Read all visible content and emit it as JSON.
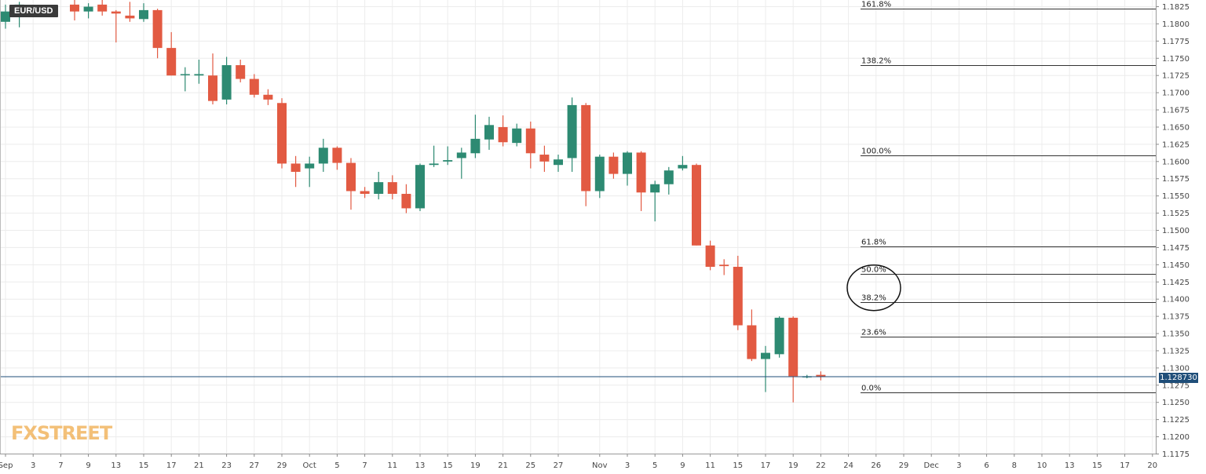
{
  "header": {
    "symbol": "EUR/USD"
  },
  "last_price": {
    "label": "1.128730",
    "value": 1.12873,
    "color": "#1f4e79"
  },
  "watermark": "FXSTREET",
  "colors": {
    "up": "#2d8a72",
    "down": "#e25a42",
    "grid": "#ececec",
    "fib_line": "#333333"
  },
  "chart_data": {
    "type": "candlestick",
    "title": "",
    "symbol": "EUR/USD",
    "grid": true,
    "y_axis": {
      "position": "right",
      "range": [
        1.1175,
        1.1825
      ],
      "ticks": [
        "1.1825",
        "1.1800",
        "1.1775",
        "1.1750",
        "1.1725",
        "1.1700",
        "1.1675",
        "1.1650",
        "1.1625",
        "1.1600",
        "1.1575",
        "1.1550",
        "1.1525",
        "1.1500",
        "1.1475",
        "1.1450",
        "1.1425",
        "1.1400",
        "1.1375",
        "1.1350",
        "1.1325",
        "1.1300",
        "1.1275",
        "1.1250",
        "1.1225",
        "1.1200",
        "1.1175"
      ]
    },
    "x_axis": {
      "ticks": [
        {
          "label": "Sep",
          "slot": 0
        },
        {
          "label": "3",
          "slot": 2
        },
        {
          "label": "7",
          "slot": 4
        },
        {
          "label": "9",
          "slot": 6
        },
        {
          "label": "13",
          "slot": 8
        },
        {
          "label": "15",
          "slot": 10
        },
        {
          "label": "17",
          "slot": 12
        },
        {
          "label": "21",
          "slot": 14
        },
        {
          "label": "23",
          "slot": 16
        },
        {
          "label": "27",
          "slot": 18
        },
        {
          "label": "29",
          "slot": 20
        },
        {
          "label": "Oct",
          "slot": 22
        },
        {
          "label": "5",
          "slot": 24
        },
        {
          "label": "7",
          "slot": 26
        },
        {
          "label": "11",
          "slot": 28
        },
        {
          "label": "13",
          "slot": 30
        },
        {
          "label": "15",
          "slot": 32
        },
        {
          "label": "19",
          "slot": 34
        },
        {
          "label": "21",
          "slot": 36
        },
        {
          "label": "25",
          "slot": 38
        },
        {
          "label": "27",
          "slot": 40
        },
        {
          "label": "Nov",
          "slot": 43
        },
        {
          "label": "3",
          "slot": 45
        },
        {
          "label": "5",
          "slot": 47
        },
        {
          "label": "9",
          "slot": 49
        },
        {
          "label": "11",
          "slot": 51
        },
        {
          "label": "15",
          "slot": 53
        },
        {
          "label": "17",
          "slot": 55
        },
        {
          "label": "19",
          "slot": 57
        },
        {
          "label": "22",
          "slot": 59
        },
        {
          "label": "24",
          "slot": 61
        },
        {
          "label": "26",
          "slot": 63
        },
        {
          "label": "29",
          "slot": 65
        },
        {
          "label": "Dec",
          "slot": 67
        },
        {
          "label": "3",
          "slot": 69
        },
        {
          "label": "6",
          "slot": 71
        },
        {
          "label": "8",
          "slot": 73
        },
        {
          "label": "10",
          "slot": 75
        },
        {
          "label": "13",
          "slot": 77
        },
        {
          "label": "15",
          "slot": 79
        },
        {
          "label": "17",
          "slot": 81
        },
        {
          "label": "20",
          "slot": 83
        }
      ]
    },
    "candles": [
      {
        "slot": 0.0,
        "o": 1.1803,
        "h": 1.1828,
        "l": 1.1793,
        "c": 1.1818
      },
      {
        "slot": 1.0,
        "o": 1.181,
        "h": 1.1832,
        "l": 1.1795,
        "c": 1.1828
      },
      {
        "slot": 5.0,
        "o": 1.1828,
        "h": 1.1838,
        "l": 1.1805,
        "c": 1.1818
      },
      {
        "slot": 6.0,
        "o": 1.1818,
        "h": 1.183,
        "l": 1.1808,
        "c": 1.1825
      },
      {
        "slot": 7.0,
        "o": 1.1828,
        "h": 1.1835,
        "l": 1.1812,
        "c": 1.1818
      },
      {
        "slot": 8.0,
        "o": 1.1818,
        "h": 1.182,
        "l": 1.1773,
        "c": 1.1815
      },
      {
        "slot": 9.0,
        "o": 1.1812,
        "h": 1.1832,
        "l": 1.1803,
        "c": 1.1808
      },
      {
        "slot": 10.0,
        "o": 1.1807,
        "h": 1.183,
        "l": 1.1803,
        "c": 1.182
      },
      {
        "slot": 11.0,
        "o": 1.182,
        "h": 1.1822,
        "l": 1.175,
        "c": 1.1765
      },
      {
        "slot": 12.0,
        "o": 1.1765,
        "h": 1.1788,
        "l": 1.1725,
        "c": 1.1725
      },
      {
        "slot": 13.0,
        "o": 1.1727,
        "h": 1.1737,
        "l": 1.1702,
        "c": 1.1727
      },
      {
        "slot": 14.0,
        "o": 1.1725,
        "h": 1.1748,
        "l": 1.1713,
        "c": 1.1727
      },
      {
        "slot": 15.0,
        "o": 1.1725,
        "h": 1.1757,
        "l": 1.1683,
        "c": 1.1688
      },
      {
        "slot": 16.0,
        "o": 1.169,
        "h": 1.1752,
        "l": 1.1683,
        "c": 1.174
      },
      {
        "slot": 17.0,
        "o": 1.174,
        "h": 1.1748,
        "l": 1.1715,
        "c": 1.172
      },
      {
        "slot": 18.0,
        "o": 1.172,
        "h": 1.1727,
        "l": 1.1693,
        "c": 1.1697
      },
      {
        "slot": 19.0,
        "o": 1.1697,
        "h": 1.1705,
        "l": 1.1682,
        "c": 1.169
      },
      {
        "slot": 20.0,
        "o": 1.1685,
        "h": 1.1692,
        "l": 1.159,
        "c": 1.1597
      },
      {
        "slot": 21.0,
        "o": 1.1597,
        "h": 1.1608,
        "l": 1.1563,
        "c": 1.1585
      },
      {
        "slot": 22.0,
        "o": 1.159,
        "h": 1.1607,
        "l": 1.1563,
        "c": 1.1597
      },
      {
        "slot": 23.0,
        "o": 1.1597,
        "h": 1.1633,
        "l": 1.1585,
        "c": 1.162
      },
      {
        "slot": 24.0,
        "o": 1.162,
        "h": 1.1622,
        "l": 1.1588,
        "c": 1.1598
      },
      {
        "slot": 25.0,
        "o": 1.1598,
        "h": 1.1605,
        "l": 1.153,
        "c": 1.1557
      },
      {
        "slot": 26.0,
        "o": 1.1557,
        "h": 1.1563,
        "l": 1.1547,
        "c": 1.1553
      },
      {
        "slot": 27.0,
        "o": 1.1553,
        "h": 1.1585,
        "l": 1.1545,
        "c": 1.157
      },
      {
        "slot": 28.0,
        "o": 1.157,
        "h": 1.158,
        "l": 1.1545,
        "c": 1.1553
      },
      {
        "slot": 29.0,
        "o": 1.1553,
        "h": 1.1567,
        "l": 1.1525,
        "c": 1.1532
      },
      {
        "slot": 30.0,
        "o": 1.1532,
        "h": 1.1597,
        "l": 1.1528,
        "c": 1.1595
      },
      {
        "slot": 31.0,
        "o": 1.1595,
        "h": 1.1623,
        "l": 1.1592,
        "c": 1.1597
      },
      {
        "slot": 32.0,
        "o": 1.16,
        "h": 1.1622,
        "l": 1.1595,
        "c": 1.1602
      },
      {
        "slot": 33.0,
        "o": 1.1605,
        "h": 1.162,
        "l": 1.1575,
        "c": 1.1613
      },
      {
        "slot": 34.0,
        "o": 1.1612,
        "h": 1.1668,
        "l": 1.1605,
        "c": 1.1633
      },
      {
        "slot": 35.0,
        "o": 1.1632,
        "h": 1.1665,
        "l": 1.1617,
        "c": 1.1653
      },
      {
        "slot": 36.0,
        "o": 1.165,
        "h": 1.1667,
        "l": 1.1622,
        "c": 1.1628
      },
      {
        "slot": 37.0,
        "o": 1.1627,
        "h": 1.1655,
        "l": 1.1622,
        "c": 1.1648
      },
      {
        "slot": 38.0,
        "o": 1.1648,
        "h": 1.1658,
        "l": 1.159,
        "c": 1.1612
      },
      {
        "slot": 39.0,
        "o": 1.161,
        "h": 1.1623,
        "l": 1.1585,
        "c": 1.16
      },
      {
        "slot": 40.0,
        "o": 1.1595,
        "h": 1.161,
        "l": 1.1585,
        "c": 1.1603
      },
      {
        "slot": 41.0,
        "o": 1.1605,
        "h": 1.1693,
        "l": 1.1585,
        "c": 1.1682
      },
      {
        "slot": 42.0,
        "o": 1.1682,
        "h": 1.1685,
        "l": 1.1535,
        "c": 1.1557
      },
      {
        "slot": 43.0,
        "o": 1.1557,
        "h": 1.161,
        "l": 1.1547,
        "c": 1.1607
      },
      {
        "slot": 44.0,
        "o": 1.1607,
        "h": 1.1613,
        "l": 1.1575,
        "c": 1.1582
      },
      {
        "slot": 45.0,
        "o": 1.1582,
        "h": 1.1615,
        "l": 1.1565,
        "c": 1.1613
      },
      {
        "slot": 46.0,
        "o": 1.1613,
        "h": 1.1615,
        "l": 1.1528,
        "c": 1.1555
      },
      {
        "slot": 47.0,
        "o": 1.1555,
        "h": 1.1572,
        "l": 1.1513,
        "c": 1.1567
      },
      {
        "slot": 48.0,
        "o": 1.1567,
        "h": 1.1592,
        "l": 1.1552,
        "c": 1.1587
      },
      {
        "slot": 49.0,
        "o": 1.159,
        "h": 1.1608,
        "l": 1.1587,
        "c": 1.1595
      },
      {
        "slot": 50.0,
        "o": 1.1595,
        "h": 1.1597,
        "l": 1.1478,
        "c": 1.1478
      },
      {
        "slot": 51.0,
        "o": 1.1478,
        "h": 1.1485,
        "l": 1.1442,
        "c": 1.1447
      },
      {
        "slot": 52.0,
        "o": 1.145,
        "h": 1.1458,
        "l": 1.1435,
        "c": 1.1448
      },
      {
        "slot": 53.0,
        "o": 1.1447,
        "h": 1.1463,
        "l": 1.1355,
        "c": 1.1362
      },
      {
        "slot": 54.0,
        "o": 1.1362,
        "h": 1.1385,
        "l": 1.131,
        "c": 1.1313
      },
      {
        "slot": 55.0,
        "o": 1.1313,
        "h": 1.1332,
        "l": 1.1265,
        "c": 1.1322
      },
      {
        "slot": 56.0,
        "o": 1.132,
        "h": 1.1375,
        "l": 1.1315,
        "c": 1.1373
      },
      {
        "slot": 57.0,
        "o": 1.1373,
        "h": 1.1375,
        "l": 1.125,
        "c": 1.1288
      },
      {
        "slot": 58.0,
        "o": 1.1287,
        "h": 1.129,
        "l": 1.1285,
        "c": 1.1288
      },
      {
        "slot": 59.0,
        "o": 1.129,
        "h": 1.1295,
        "l": 1.1282,
        "c": 1.1287
      }
    ],
    "fib_levels": [
      {
        "label": "161.8%",
        "price": 1.1822
      },
      {
        "label": "138.2%",
        "price": 1.174
      },
      {
        "label": "100.0%",
        "price": 1.1609
      },
      {
        "label": "61.8%",
        "price": 1.1477
      },
      {
        "label": "50.0%",
        "price": 1.1437
      },
      {
        "label": "38.2%",
        "price": 1.1396
      },
      {
        "label": "23.6%",
        "price": 1.1346
      },
      {
        "label": "0.0%",
        "price": 1.1265
      }
    ],
    "annotations": [
      {
        "type": "ellipse",
        "around": [
          "50.0%",
          "38.2%"
        ]
      }
    ]
  }
}
